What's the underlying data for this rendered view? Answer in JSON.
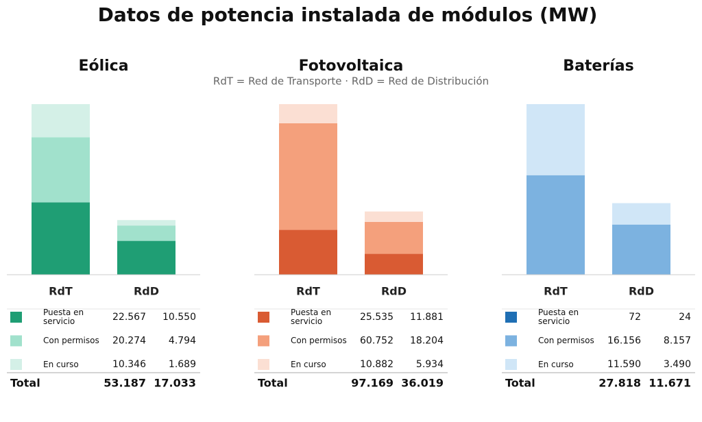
{
  "title": "Datos de potencia instalada de módulos (MW)",
  "subtitle": "RdT = Red de Transporte  ·  RdD = Red de Distribución",
  "chart_data": [
    {
      "type": "bar",
      "stacked": true,
      "title": "Eólica",
      "categories": [
        "RdT",
        "RdD"
      ],
      "series": [
        {
          "name": "Puesta en servicio",
          "color": "#1f9e74",
          "values": [
            22567,
            10550
          ],
          "value_labels": [
            "22.567",
            "10.550"
          ]
        },
        {
          "name": "Con permisos",
          "color": "#a1e1cc",
          "values": [
            20274,
            4794
          ],
          "value_labels": [
            "20.274",
            "4.794"
          ]
        },
        {
          "name": "En curso",
          "color": "#d4f0e7",
          "values": [
            10346,
            1689
          ],
          "value_labels": [
            "10.346",
            "1.689"
          ]
        }
      ],
      "total": {
        "name": "Total",
        "values": [
          53187,
          17033
        ],
        "value_labels": [
          "53.187",
          "17.033"
        ]
      }
    },
    {
      "type": "bar",
      "stacked": true,
      "title": "Fotovoltaica",
      "categories": [
        "RdT",
        "RdD"
      ],
      "series": [
        {
          "name": "Puesta en servicio",
          "color": "#d95b33",
          "values": [
            25535,
            11881
          ],
          "value_labels": [
            "25.535",
            "11.881"
          ]
        },
        {
          "name": "Con permisos",
          "color": "#f4a07c",
          "values": [
            60752,
            18204
          ],
          "value_labels": [
            "60.752",
            "18.204"
          ]
        },
        {
          "name": "En curso",
          "color": "#fbdfd3",
          "values": [
            10882,
            5934
          ],
          "value_labels": [
            "10.882",
            "5.934"
          ]
        }
      ],
      "total": {
        "name": "Total",
        "values": [
          97169,
          36019
        ],
        "value_labels": [
          "97.169",
          "36.019"
        ]
      }
    },
    {
      "type": "bar",
      "stacked": true,
      "title": "Baterías",
      "categories": [
        "RdT",
        "RdD"
      ],
      "series": [
        {
          "name": "Puesta en servicio",
          "color": "#1f6fb4",
          "values": [
            72,
            24
          ],
          "value_labels": [
            "72",
            "24"
          ]
        },
        {
          "name": "Con permisos",
          "color": "#7cb2e0",
          "values": [
            16156,
            8157
          ],
          "value_labels": [
            "16.156",
            "8.157"
          ]
        },
        {
          "name": "En curso",
          "color": "#d0e6f7",
          "values": [
            11590,
            3490
          ],
          "value_labels": [
            "11.590",
            "3.490"
          ]
        }
      ],
      "total": {
        "name": "Total",
        "values": [
          27818,
          11671
        ],
        "value_labels": [
          "27.818",
          "11.671"
        ]
      }
    }
  ]
}
